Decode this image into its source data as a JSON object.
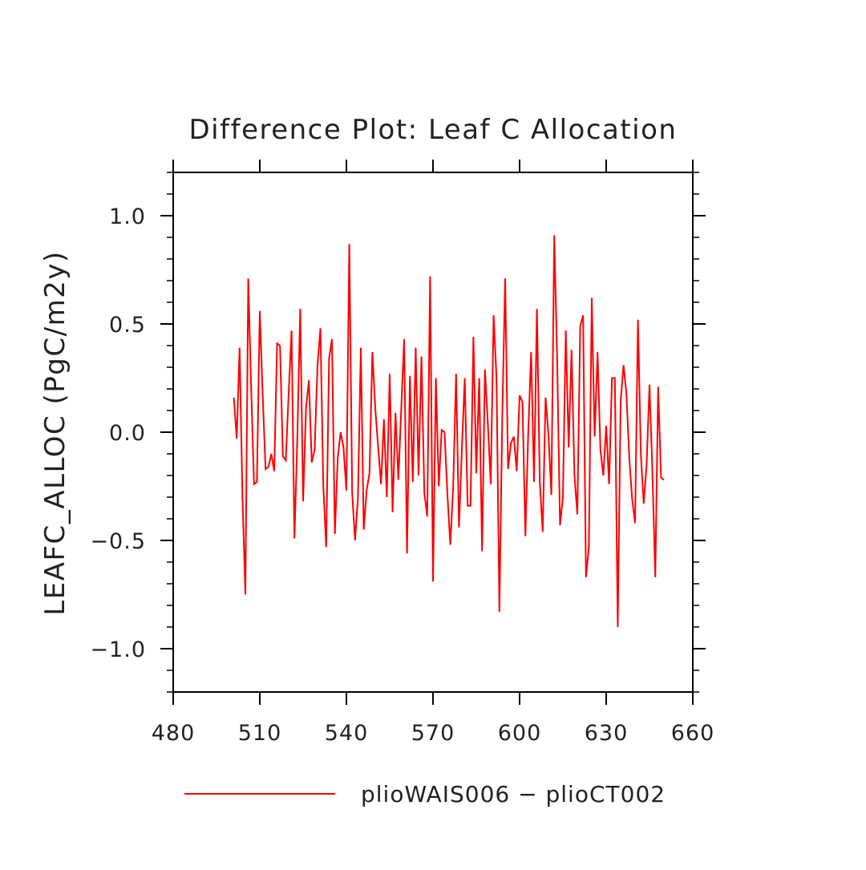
{
  "chart_data": {
    "type": "line",
    "title": "Difference Plot: Leaf C Allocation",
    "xlabel": "",
    "ylabel": "LEAFC_ALLOC   (PgC/m2y)",
    "xlim": [
      480,
      660
    ],
    "ylim": [
      -1.2,
      1.2
    ],
    "x_ticks": [
      480,
      510,
      540,
      570,
      600,
      630,
      660
    ],
    "x_tick_labels": [
      "480",
      "510",
      "540",
      "570",
      "600",
      "630",
      "660"
    ],
    "y_ticks": [
      -1.0,
      -0.5,
      0.0,
      0.5,
      1.0
    ],
    "y_tick_labels": [
      "−1.0",
      "−0.5",
      "0.0",
      "0.5",
      "1.0"
    ],
    "grid": false,
    "legend_position": "bottom",
    "series": [
      {
        "name": "plioWAIS006 − plioCT002",
        "color": "#ff0000",
        "x_start": 501,
        "x_step": 1,
        "values": [
          0.16,
          -0.03,
          0.39,
          -0.3,
          -0.75,
          0.71,
          0.21,
          -0.24,
          -0.23,
          0.56,
          0.17,
          -0.17,
          -0.16,
          -0.1,
          -0.18,
          0.41,
          0.4,
          -0.11,
          -0.13,
          0.18,
          0.47,
          -0.49,
          -0.03,
          0.57,
          -0.32,
          0.11,
          0.24,
          -0.14,
          -0.08,
          0.31,
          0.48,
          -0.25,
          -0.53,
          0.34,
          0.43,
          -0.47,
          -0.12,
          0.0,
          -0.07,
          -0.27,
          0.87,
          -0.28,
          -0.5,
          -0.3,
          0.39,
          -0.45,
          -0.27,
          -0.19,
          0.37,
          0.11,
          -0.07,
          -0.24,
          0.06,
          -0.3,
          0.27,
          -0.37,
          0.09,
          -0.22,
          0.11,
          0.43,
          -0.56,
          0.26,
          -0.23,
          0.39,
          -0.2,
          0.35,
          -0.28,
          -0.39,
          0.72,
          -0.69,
          0.25,
          -0.25,
          0.01,
          0.0,
          -0.29,
          -0.52,
          -0.25,
          0.27,
          -0.44,
          -0.08,
          0.25,
          -0.34,
          -0.34,
          0.44,
          -0.19,
          0.25,
          -0.55,
          0.29,
          0.04,
          -0.24,
          0.54,
          0.25,
          -0.83,
          0.07,
          0.71,
          -0.17,
          -0.05,
          -0.02,
          -0.18,
          0.17,
          0.14,
          -0.48,
          0.0,
          0.37,
          -0.23,
          0.57,
          -0.23,
          -0.46,
          0.16,
          -0.01,
          -0.29,
          0.91,
          0.34,
          -0.43,
          -0.3,
          0.47,
          -0.07,
          0.38,
          -0.2,
          -0.38,
          0.49,
          0.54,
          -0.67,
          -0.53,
          0.62,
          -0.02,
          0.37,
          -0.08,
          -0.2,
          0.03,
          -0.24,
          0.25,
          0.25,
          -0.9,
          0.14,
          0.31,
          0.18,
          -0.12,
          -0.31,
          -0.42,
          0.52,
          -0.1,
          -0.33,
          -0.15,
          0.22,
          -0.18,
          -0.67,
          0.21,
          -0.21,
          -0.22
        ]
      }
    ]
  }
}
